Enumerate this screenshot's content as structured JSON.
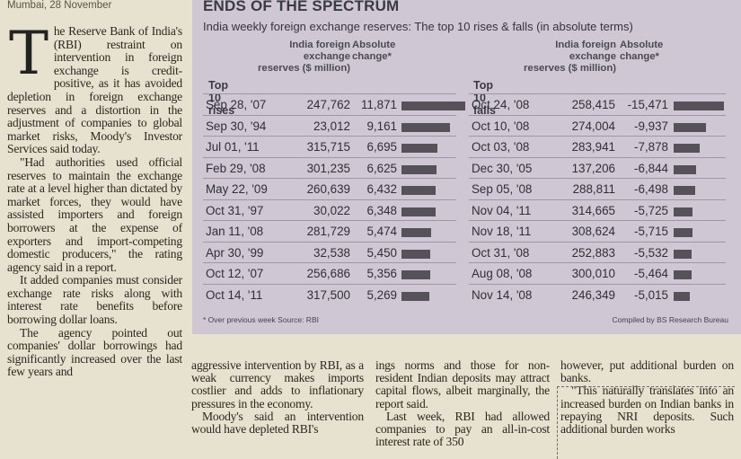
{
  "dateline": "Mumbai, 28 November",
  "article": {
    "dropcap": "T",
    "para1": "he Reserve Bank of India's (RBI) restraint on intervention in foreign exchange is credit-positive, as it has avoided depletion in foreign exchange reserves and a distortion in the adjustment of companies to global market risks, Moody's Investor Services said today.",
    "para2": "\"Had authorities used official reserves to maintain the exchange rate at a level higher than dictated by market forces, they would have assisted importers and foreign borrowers at the expense of exporters and import-competing domestic producers,\" the rating agency said in a report.",
    "para3": "It added companies must consider exchange rate risks along with interest rate benefits before borrowing dollar loans.",
    "para4": "The agency pointed out companies' dollar borrowings had significantly increased over the last few years and",
    "col2_p1": "aggressive intervention by RBI, as a weak currency makes imports costlier and adds to inflationary pressures in the economy.",
    "col2_p2": "Moody's said an intervention would have depleted RBI's",
    "col3_p1": "ings norms and those for non-resident Indian deposits may attract capital flows, albeit marginally, the report said.",
    "col3_p2": "Last week, RBI had allowed companies to pay an all-in-cost interest rate of 350",
    "col4_p1": "however, put additional burden on banks.",
    "col4_p2": "\"This naturally translates into an increased burden on Indian banks in repaying NRI deposits. Such additional burden works"
  },
  "chart": {
    "title": "ENDS OF THE SPECTRUM",
    "subtitle": "India weekly foreign exchange reserves: The top 10 rises & falls (in absolute terms)",
    "col_reserves": [
      "India foreign exchange",
      "reserves ($ million)"
    ],
    "col_change": [
      "Absolute",
      "change*"
    ],
    "rises_label": "Top 10 rises",
    "falls_label": "Top 10 falls",
    "footnote": "* Over previous week  Source: RBI",
    "credit": "Compiled by BS Research Bureau"
  },
  "chart_data": {
    "type": "bar",
    "rises": [
      {
        "date": "Sep 28, '07",
        "reserves": "247,762",
        "change": "11,871",
        "value": 11871
      },
      {
        "date": "Sep 30, '94",
        "reserves": "23,012",
        "change": "9,161",
        "value": 9161
      },
      {
        "date": "Jul 01, '11",
        "reserves": "315,715",
        "change": "6,695",
        "value": 6695
      },
      {
        "date": "Feb 29, '08",
        "reserves": "301,235",
        "change": "6,625",
        "value": 6625
      },
      {
        "date": "May 22, '09",
        "reserves": "260,639",
        "change": "6,432",
        "value": 6432
      },
      {
        "date": "Oct 31, '97",
        "reserves": "30,022",
        "change": "6,348",
        "value": 6348
      },
      {
        "date": "Jan 11, '08",
        "reserves": "281,729",
        "change": "5,474",
        "value": 5474
      },
      {
        "date": "Apr 30, '99",
        "reserves": "32,538",
        "change": "5,450",
        "value": 5450
      },
      {
        "date": "Oct 12, '07",
        "reserves": "256,686",
        "change": "5,356",
        "value": 5356
      },
      {
        "date": "Oct 14, '11",
        "reserves": "317,500",
        "change": "5,269",
        "value": 5269
      }
    ],
    "falls": [
      {
        "date": "Oct 24, '08",
        "reserves": "258,415",
        "change": "-15,471",
        "value": -15471
      },
      {
        "date": "Oct 10, '08",
        "reserves": "274,004",
        "change": "-9,937",
        "value": -9937
      },
      {
        "date": "Oct 03, '08",
        "reserves": "283,941",
        "change": "-7,878",
        "value": -7878
      },
      {
        "date": "Dec 30, '05",
        "reserves": "137,206",
        "change": "-6,844",
        "value": -6844
      },
      {
        "date": "Sep 05, '08",
        "reserves": "288,811",
        "change": "-6,498",
        "value": -6498
      },
      {
        "date": "Nov 04, '11",
        "reserves": "314,665",
        "change": "-5,725",
        "value": -5725
      },
      {
        "date": "Nov 18, '11",
        "reserves": "308,624",
        "change": "-5,715",
        "value": -5715
      },
      {
        "date": "Oct 31, '08",
        "reserves": "252,883",
        "change": "-5,532",
        "value": -5532
      },
      {
        "date": "Aug 08, '08",
        "reserves": "300,010",
        "change": "-5,464",
        "value": -5464
      },
      {
        "date": "Nov 14, '08",
        "reserves": "246,349",
        "change": "-5,015",
        "value": -5015
      }
    ]
  }
}
